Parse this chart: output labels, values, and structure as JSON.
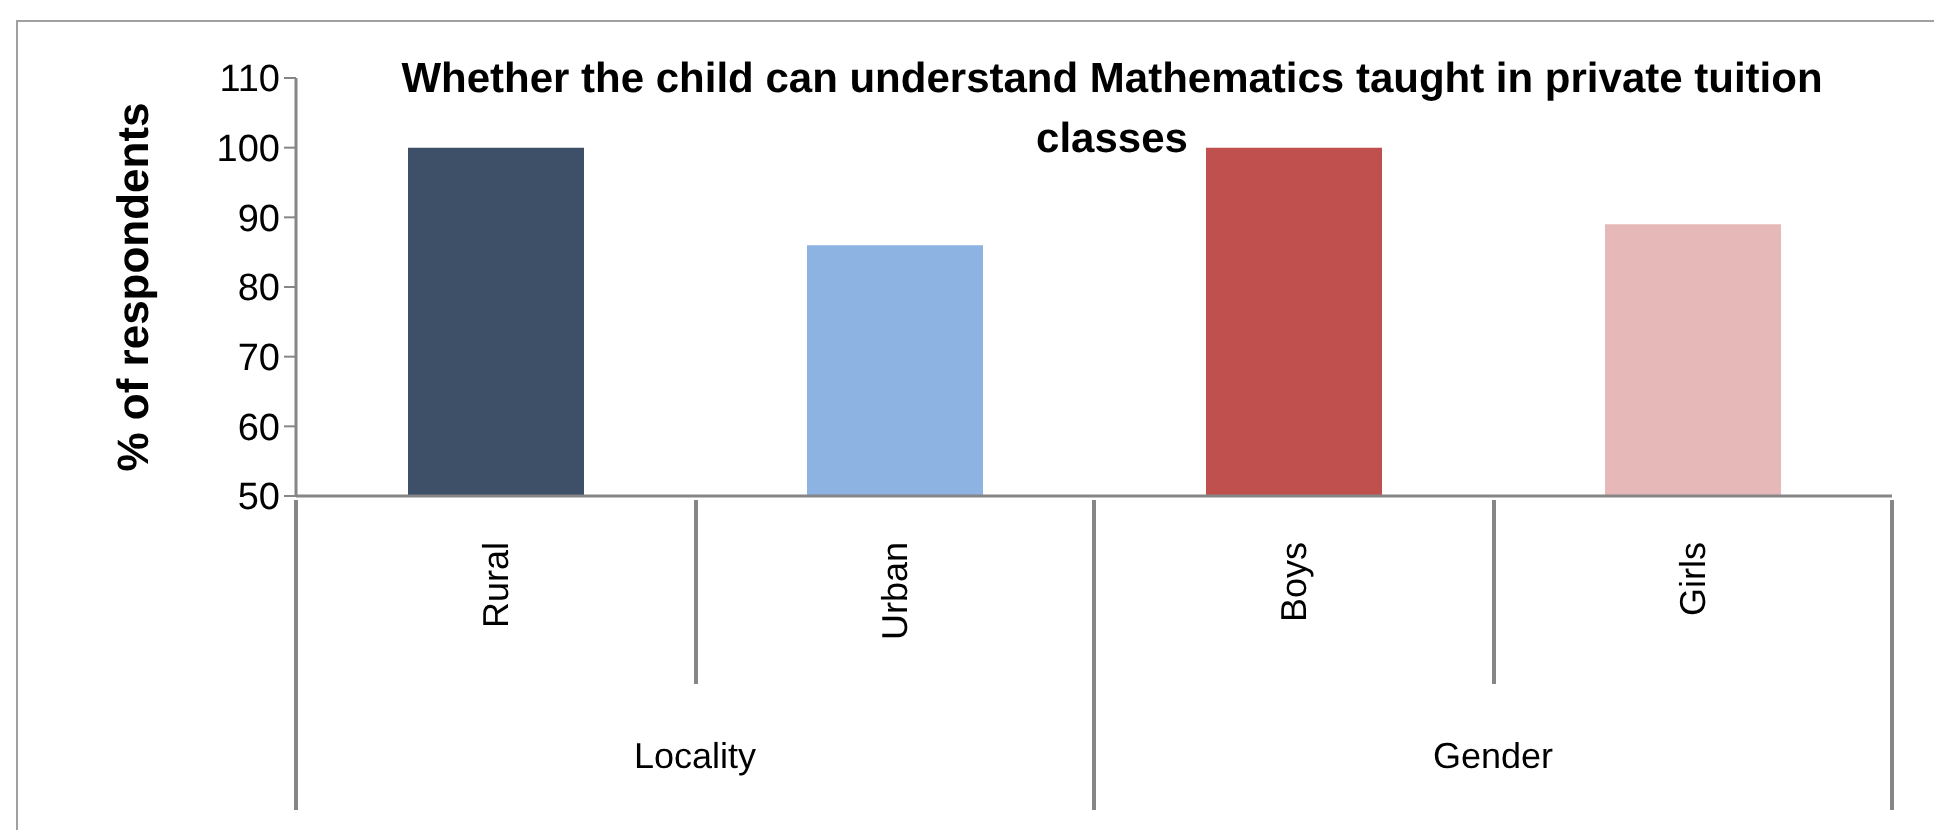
{
  "chart_data": {
    "type": "bar",
    "title": "Whether the child can understand Mathematics taught in private tuition classes",
    "ylabel": "% of respondents",
    "categories": [
      "Rural",
      "Urban",
      "Boys",
      "Girls"
    ],
    "values": [
      100,
      86,
      100,
      89
    ],
    "colors": [
      "#3d5068",
      "#8db3e2",
      "#c0504d",
      "#e6b8b7"
    ],
    "ylim": [
      50,
      110
    ],
    "yticks": [
      50,
      60,
      70,
      80,
      90,
      100,
      110
    ],
    "annotations": [
      "Locality",
      "Gender"
    ]
  }
}
